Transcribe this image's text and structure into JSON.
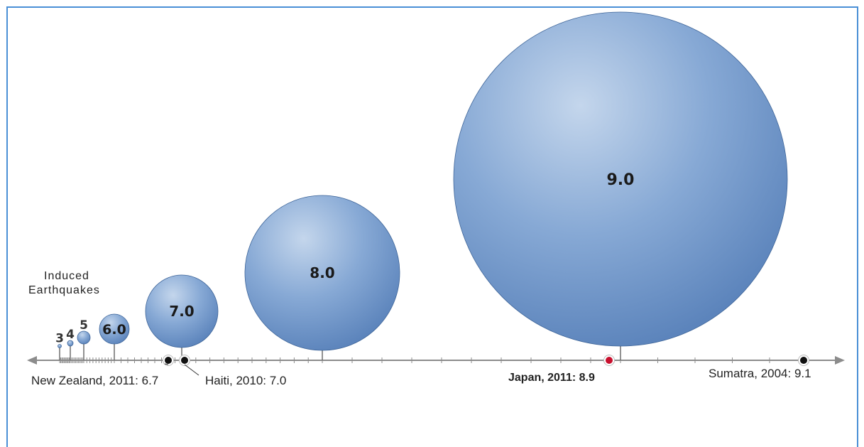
{
  "colors": {
    "frame": "#4a8fd6",
    "bubble_light": "#c4d6ec",
    "bubble_mid": "#87a9d5",
    "bubble_dark": "#4f79b4",
    "bubble_edge": "#3d6498",
    "axis": "#8c8c8c",
    "event_dot": "#111111",
    "highlight": "#c8102e"
  },
  "induced_label": [
    "Induced",
    "Earthquakes"
  ],
  "magnitudes": [
    {
      "magnitude": 3,
      "label": "3"
    },
    {
      "magnitude": 4,
      "label": "4"
    },
    {
      "magnitude": 5,
      "label": "5"
    },
    {
      "magnitude": 6,
      "label": "6.0"
    },
    {
      "magnitude": 7,
      "label": "7.0"
    },
    {
      "magnitude": 8,
      "label": "8.0"
    },
    {
      "magnitude": 9,
      "label": "9.0"
    }
  ],
  "events": [
    {
      "name": "New Zealand",
      "year": 2011,
      "magnitude": 6.7,
      "label": "New Zealand, 2011: 6.7",
      "highlight": false
    },
    {
      "name": "Haiti",
      "year": 2010,
      "magnitude": 7.0,
      "label": "Haiti, 2010: 7.0",
      "highlight": false
    },
    {
      "name": "Japan",
      "year": 2011,
      "magnitude": 8.9,
      "label": "Japan, 2011: 8.9",
      "highlight": true
    },
    {
      "name": "Sumatra",
      "year": 2004,
      "magnitude": 9.1,
      "label": "Sumatra, 2004: 9.1",
      "highlight": false
    }
  ]
}
